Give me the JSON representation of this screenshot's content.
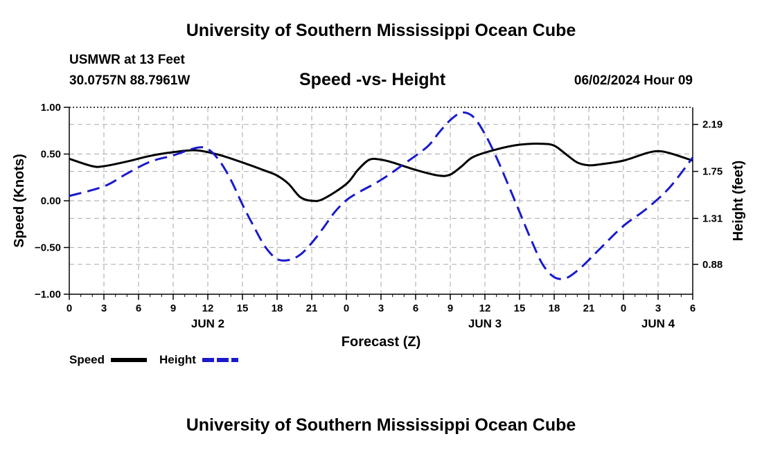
{
  "titles": {
    "top": "University of Southern Mississippi Ocean Cube",
    "bottom": "University of Southern Mississippi Ocean Cube",
    "station": "USMWR at 13 Feet",
    "coords": "30.0757N  88.7961W",
    "subtitle": "Speed -vs- Height",
    "datestamp": "06/02/2024 Hour 09"
  },
  "chart_data": {
    "type": "line",
    "title": "Speed -vs- Height",
    "xlabel": "Forecast (Z)",
    "ylabel": "Speed (Knots)",
    "y2label": "Height (feet)",
    "xlim": [
      0,
      54
    ],
    "ylim": [
      -1.0,
      1.0
    ],
    "y2lim": [
      0.6,
      2.35
    ],
    "grid": true,
    "x_ticks": [
      0,
      3,
      6,
      9,
      12,
      15,
      18,
      21,
      24,
      27,
      30,
      33,
      36,
      39,
      42,
      45,
      48,
      51,
      54
    ],
    "x_tick_labels": [
      "0",
      "3",
      "6",
      "9",
      "12",
      "15",
      "18",
      "21",
      "0",
      "3",
      "6",
      "9",
      "12",
      "15",
      "18",
      "21",
      "0",
      "3",
      "6"
    ],
    "day_labels": [
      {
        "x": 12,
        "label": "JUN 2"
      },
      {
        "x": 36,
        "label": "JUN 3"
      },
      {
        "x": 51,
        "label": "JUN 4"
      }
    ],
    "y_ticks": [
      1.0,
      0.5,
      0.0,
      -0.5,
      -1.0
    ],
    "y_tick_labels": [
      "1.00",
      "0.50",
      "0.00",
      "−0.50",
      "−1.00"
    ],
    "y2_ticks": [
      2.19,
      1.75,
      1.31,
      0.88
    ],
    "y2_tick_labels": [
      "2.19",
      "1.75",
      "1.31",
      "0.88"
    ],
    "legend": {
      "position": "bottom-left",
      "speed_label": "Speed",
      "height_label": "Height"
    },
    "series": [
      {
        "name": "Speed",
        "axis": "left",
        "color": "#000000",
        "dash": "solid",
        "x": [
          0,
          2,
          3,
          5,
          7,
          9,
          11,
          13,
          15,
          17,
          18,
          19,
          20,
          21,
          22,
          24,
          25,
          26,
          27,
          28,
          30,
          32,
          33,
          34,
          35,
          37,
          39,
          41,
          42,
          43,
          44,
          45,
          46,
          48,
          50,
          51,
          52,
          54
        ],
        "y": [
          0.45,
          0.37,
          0.37,
          0.42,
          0.48,
          0.52,
          0.54,
          0.49,
          0.41,
          0.32,
          0.27,
          0.18,
          0.04,
          0.0,
          0.02,
          0.18,
          0.33,
          0.44,
          0.44,
          0.41,
          0.33,
          0.27,
          0.28,
          0.37,
          0.47,
          0.55,
          0.6,
          0.61,
          0.59,
          0.5,
          0.41,
          0.38,
          0.39,
          0.43,
          0.51,
          0.53,
          0.51,
          0.43
        ]
      },
      {
        "name": "Height",
        "axis": "right",
        "color": "#1a1acc",
        "dash": "dashed",
        "x": [
          0,
          3,
          5,
          7,
          9,
          11,
          12,
          13,
          14,
          15,
          16,
          17,
          18,
          19,
          20,
          21,
          22,
          23,
          24,
          25,
          27,
          29,
          31,
          32,
          33,
          34,
          35,
          36,
          37,
          38,
          39,
          40,
          41,
          42,
          43,
          44,
          45,
          46,
          48,
          50,
          52,
          54
        ],
        "y": [
          1.52,
          1.61,
          1.73,
          1.84,
          1.9,
          1.97,
          1.96,
          1.85,
          1.67,
          1.44,
          1.23,
          1.04,
          0.93,
          0.92,
          0.97,
          1.08,
          1.22,
          1.37,
          1.48,
          1.55,
          1.67,
          1.82,
          1.98,
          2.11,
          2.23,
          2.3,
          2.26,
          2.1,
          1.88,
          1.63,
          1.37,
          1.11,
          0.88,
          0.76,
          0.75,
          0.82,
          0.92,
          1.03,
          1.24,
          1.4,
          1.6,
          1.88
        ]
      }
    ]
  }
}
